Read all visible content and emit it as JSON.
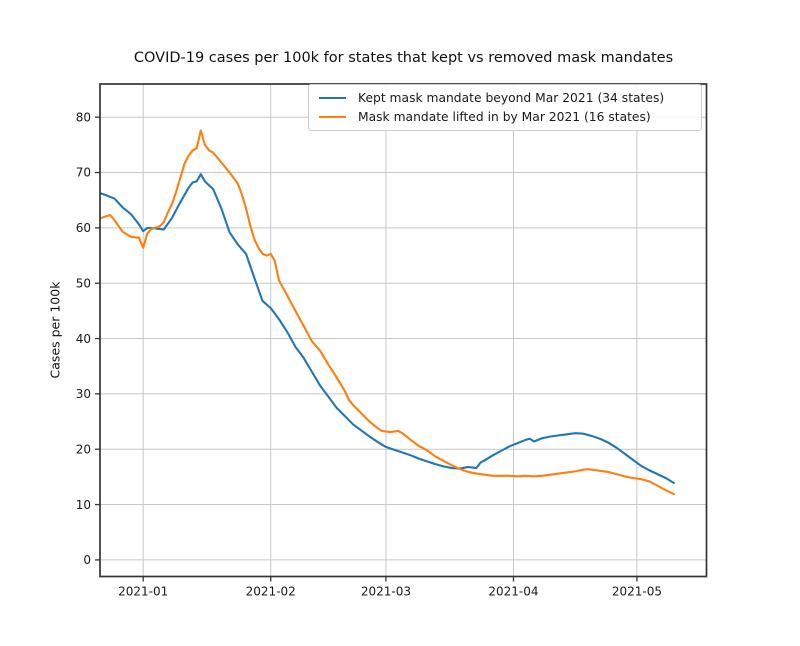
{
  "title": "COVID-19 cases per 100k for states that kept vs removed mask mandates",
  "chart_data": {
    "type": "line",
    "title": "COVID-19 cases per 100k for states that kept vs removed mask mandates",
    "xlabel": "",
    "ylabel": "Cases per 100k",
    "grid": true,
    "legend_position": "upper right",
    "xlim": [
      "2020-12-21T12:00:00Z",
      "2021-05-17T22:00:00Z"
    ],
    "ylim": [
      -3,
      86
    ],
    "x_ticks": [
      {
        "label": "2021-01",
        "date": "2021-01-01"
      },
      {
        "label": "2021-02",
        "date": "2021-02-01"
      },
      {
        "label": "2021-03",
        "date": "2021-03-01"
      },
      {
        "label": "2021-04",
        "date": "2021-04-01"
      },
      {
        "label": "2021-05",
        "date": "2021-05-01"
      }
    ],
    "y_ticks": [
      {
        "label": "0",
        "value": 0
      },
      {
        "label": "10",
        "value": 10
      },
      {
        "label": "20",
        "value": 20
      },
      {
        "label": "30",
        "value": 30
      },
      {
        "label": "40",
        "value": 40
      },
      {
        "label": "50",
        "value": 50
      },
      {
        "label": "60",
        "value": 60
      },
      {
        "label": "70",
        "value": 70
      },
      {
        "label": "80",
        "value": 80
      }
    ],
    "legend": {
      "entries": [
        {
          "label": "Kept mask mandate beyond Mar 2021 (34 states)",
          "color": "#1f77b4"
        },
        {
          "label": "Mask mandate lifted in by Mar 2021 (16 states)",
          "color": "#ff7f0e"
        }
      ]
    },
    "series": [
      {
        "id": "kept",
        "name": "Kept mask mandate beyond Mar 2021 (34 states)",
        "color": "#1f77b4",
        "points": [
          [
            "2020-12-21",
            66.4
          ],
          [
            "2020-12-23",
            65.9
          ],
          [
            "2020-12-25",
            65.3
          ],
          [
            "2020-12-27",
            63.7
          ],
          [
            "2020-12-29",
            62.5
          ],
          [
            "2020-12-31",
            60.6
          ],
          [
            "2021-01-01",
            59.4
          ],
          [
            "2021-01-02",
            60.0
          ],
          [
            "2021-01-04",
            59.9
          ],
          [
            "2021-01-06",
            59.7
          ],
          [
            "2021-01-08",
            61.8
          ],
          [
            "2021-01-10",
            64.6
          ],
          [
            "2021-01-12",
            67.2
          ],
          [
            "2021-01-13",
            68.2
          ],
          [
            "2021-01-14",
            68.4
          ],
          [
            "2021-01-15",
            69.7
          ],
          [
            "2021-01-16",
            68.4
          ],
          [
            "2021-01-18",
            67.0
          ],
          [
            "2021-01-20",
            63.5
          ],
          [
            "2021-01-22",
            59.2
          ],
          [
            "2021-01-24",
            57.0
          ],
          [
            "2021-01-26",
            55.3
          ],
          [
            "2021-01-28",
            51.0
          ],
          [
            "2021-01-30",
            46.8
          ],
          [
            "2021-02-01",
            45.5
          ],
          [
            "2021-02-03",
            43.5
          ],
          [
            "2021-02-05",
            41.2
          ],
          [
            "2021-02-07",
            38.5
          ],
          [
            "2021-02-09",
            36.5
          ],
          [
            "2021-02-11",
            34.0
          ],
          [
            "2021-02-13",
            31.5
          ],
          [
            "2021-02-15",
            29.5
          ],
          [
            "2021-02-17",
            27.5
          ],
          [
            "2021-02-19",
            26.0
          ],
          [
            "2021-02-21",
            24.5
          ],
          [
            "2021-02-23",
            23.4
          ],
          [
            "2021-02-25",
            22.3
          ],
          [
            "2021-02-27",
            21.3
          ],
          [
            "2021-03-01",
            20.4
          ],
          [
            "2021-03-03",
            19.9
          ],
          [
            "2021-03-05",
            19.4
          ],
          [
            "2021-03-07",
            18.9
          ],
          [
            "2021-03-09",
            18.3
          ],
          [
            "2021-03-11",
            17.8
          ],
          [
            "2021-03-13",
            17.3
          ],
          [
            "2021-03-15",
            16.9
          ],
          [
            "2021-03-17",
            16.6
          ],
          [
            "2021-03-19",
            16.5
          ],
          [
            "2021-03-21",
            16.8
          ],
          [
            "2021-03-23",
            16.6
          ],
          [
            "2021-03-24",
            17.6
          ],
          [
            "2021-03-25",
            18.0
          ],
          [
            "2021-03-27",
            18.9
          ],
          [
            "2021-03-29",
            19.7
          ],
          [
            "2021-03-31",
            20.5
          ],
          [
            "2021-04-02",
            21.1
          ],
          [
            "2021-04-04",
            21.7
          ],
          [
            "2021-04-05",
            21.9
          ],
          [
            "2021-04-06",
            21.4
          ],
          [
            "2021-04-08",
            22.0
          ],
          [
            "2021-04-10",
            22.3
          ],
          [
            "2021-04-12",
            22.5
          ],
          [
            "2021-04-14",
            22.7
          ],
          [
            "2021-04-16",
            22.9
          ],
          [
            "2021-04-18",
            22.8
          ],
          [
            "2021-04-20",
            22.4
          ],
          [
            "2021-04-22",
            21.9
          ],
          [
            "2021-04-24",
            21.2
          ],
          [
            "2021-04-26",
            20.3
          ],
          [
            "2021-04-28",
            19.2
          ],
          [
            "2021-04-30",
            18.1
          ],
          [
            "2021-05-02",
            17.0
          ],
          [
            "2021-05-04",
            16.2
          ],
          [
            "2021-05-06",
            15.5
          ],
          [
            "2021-05-08",
            14.8
          ],
          [
            "2021-05-10",
            13.9
          ]
        ]
      },
      {
        "id": "lifted",
        "name": "Mask mandate lifted in by Mar 2021 (16 states)",
        "color": "#ff7f0e",
        "points": [
          [
            "2020-12-21",
            61.6
          ],
          [
            "2020-12-23",
            62.1
          ],
          [
            "2020-12-24",
            62.3
          ],
          [
            "2020-12-25",
            61.4
          ],
          [
            "2020-12-27",
            59.3
          ],
          [
            "2020-12-29",
            58.4
          ],
          [
            "2020-12-31",
            58.2
          ],
          [
            "2021-01-01",
            56.4
          ],
          [
            "2021-01-02",
            59.0
          ],
          [
            "2021-01-03",
            59.8
          ],
          [
            "2021-01-05",
            60.3
          ],
          [
            "2021-01-06",
            61.0
          ],
          [
            "2021-01-07",
            62.8
          ],
          [
            "2021-01-08",
            64.3
          ],
          [
            "2021-01-09",
            66.5
          ],
          [
            "2021-01-10",
            69.0
          ],
          [
            "2021-01-11",
            71.5
          ],
          [
            "2021-01-12",
            73.0
          ],
          [
            "2021-01-13",
            74.0
          ],
          [
            "2021-01-14",
            74.4
          ],
          [
            "2021-01-15",
            77.6
          ],
          [
            "2021-01-16",
            75.0
          ],
          [
            "2021-01-17",
            74.0
          ],
          [
            "2021-01-18",
            73.6
          ],
          [
            "2021-01-20",
            71.8
          ],
          [
            "2021-01-22",
            70.0
          ],
          [
            "2021-01-24",
            68.0
          ],
          [
            "2021-01-25",
            66.0
          ],
          [
            "2021-01-26",
            63.5
          ],
          [
            "2021-01-27",
            60.5
          ],
          [
            "2021-01-28",
            58.0
          ],
          [
            "2021-01-29",
            56.4
          ],
          [
            "2021-01-30",
            55.3
          ],
          [
            "2021-01-31",
            55.0
          ],
          [
            "2021-02-01",
            55.3
          ],
          [
            "2021-02-02",
            54.0
          ],
          [
            "2021-02-03",
            50.5
          ],
          [
            "2021-02-05",
            47.8
          ],
          [
            "2021-02-07",
            45.0
          ],
          [
            "2021-02-09",
            42.3
          ],
          [
            "2021-02-11",
            39.5
          ],
          [
            "2021-02-13",
            37.8
          ],
          [
            "2021-02-15",
            35.3
          ],
          [
            "2021-02-17",
            33.0
          ],
          [
            "2021-02-19",
            30.5
          ],
          [
            "2021-02-20",
            28.9
          ],
          [
            "2021-02-21",
            28.0
          ],
          [
            "2021-02-23",
            26.5
          ],
          [
            "2021-02-25",
            25.0
          ],
          [
            "2021-02-27",
            23.8
          ],
          [
            "2021-02-28",
            23.3
          ],
          [
            "2021-03-01",
            23.2
          ],
          [
            "2021-03-02",
            23.1
          ],
          [
            "2021-03-03",
            23.2
          ],
          [
            "2021-03-04",
            23.3
          ],
          [
            "2021-03-05",
            22.9
          ],
          [
            "2021-03-07",
            21.7
          ],
          [
            "2021-03-09",
            20.6
          ],
          [
            "2021-03-11",
            19.8
          ],
          [
            "2021-03-13",
            18.7
          ],
          [
            "2021-03-15",
            17.9
          ],
          [
            "2021-03-17",
            17.1
          ],
          [
            "2021-03-19",
            16.4
          ],
          [
            "2021-03-21",
            15.9
          ],
          [
            "2021-03-23",
            15.6
          ],
          [
            "2021-03-25",
            15.4
          ],
          [
            "2021-03-27",
            15.2
          ],
          [
            "2021-03-29",
            15.2
          ],
          [
            "2021-03-31",
            15.2
          ],
          [
            "2021-04-02",
            15.1
          ],
          [
            "2021-04-04",
            15.2
          ],
          [
            "2021-04-06",
            15.1
          ],
          [
            "2021-04-08",
            15.2
          ],
          [
            "2021-04-10",
            15.4
          ],
          [
            "2021-04-12",
            15.6
          ],
          [
            "2021-04-14",
            15.8
          ],
          [
            "2021-04-16",
            16.0
          ],
          [
            "2021-04-18",
            16.3
          ],
          [
            "2021-04-19",
            16.4
          ],
          [
            "2021-04-20",
            16.3
          ],
          [
            "2021-04-22",
            16.1
          ],
          [
            "2021-04-24",
            15.9
          ],
          [
            "2021-04-26",
            15.5
          ],
          [
            "2021-04-28",
            15.1
          ],
          [
            "2021-04-30",
            14.8
          ],
          [
            "2021-05-02",
            14.6
          ],
          [
            "2021-05-04",
            14.2
          ],
          [
            "2021-05-06",
            13.4
          ],
          [
            "2021-05-08",
            12.6
          ],
          [
            "2021-05-10",
            11.9
          ]
        ]
      }
    ]
  }
}
